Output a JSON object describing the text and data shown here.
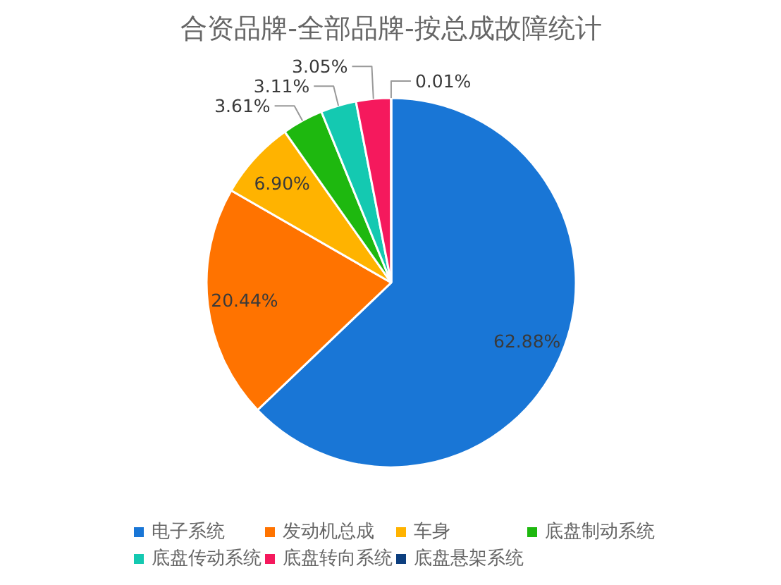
{
  "chart_data": {
    "type": "pie",
    "title": "合资品牌-全部品牌-按总成故障统计",
    "categories": [
      "电子系统",
      "发动机总成",
      "车身",
      "底盘制动系统",
      "底盘传动系统",
      "底盘转向系统",
      "底盘悬架系统"
    ],
    "values": [
      62.88,
      20.44,
      6.9,
      3.61,
      3.11,
      3.05,
      0.01
    ],
    "colors": [
      "#1976d6",
      "#ff7300",
      "#ffb300",
      "#1eb80f",
      "#14c9b1",
      "#f5195d",
      "#0d3f7f"
    ],
    "value_labels": [
      "62.88%",
      "20.44%",
      "6.90%",
      "3.61%",
      "3.11%",
      "3.05%",
      "0.01%"
    ],
    "legend": "bottom"
  }
}
